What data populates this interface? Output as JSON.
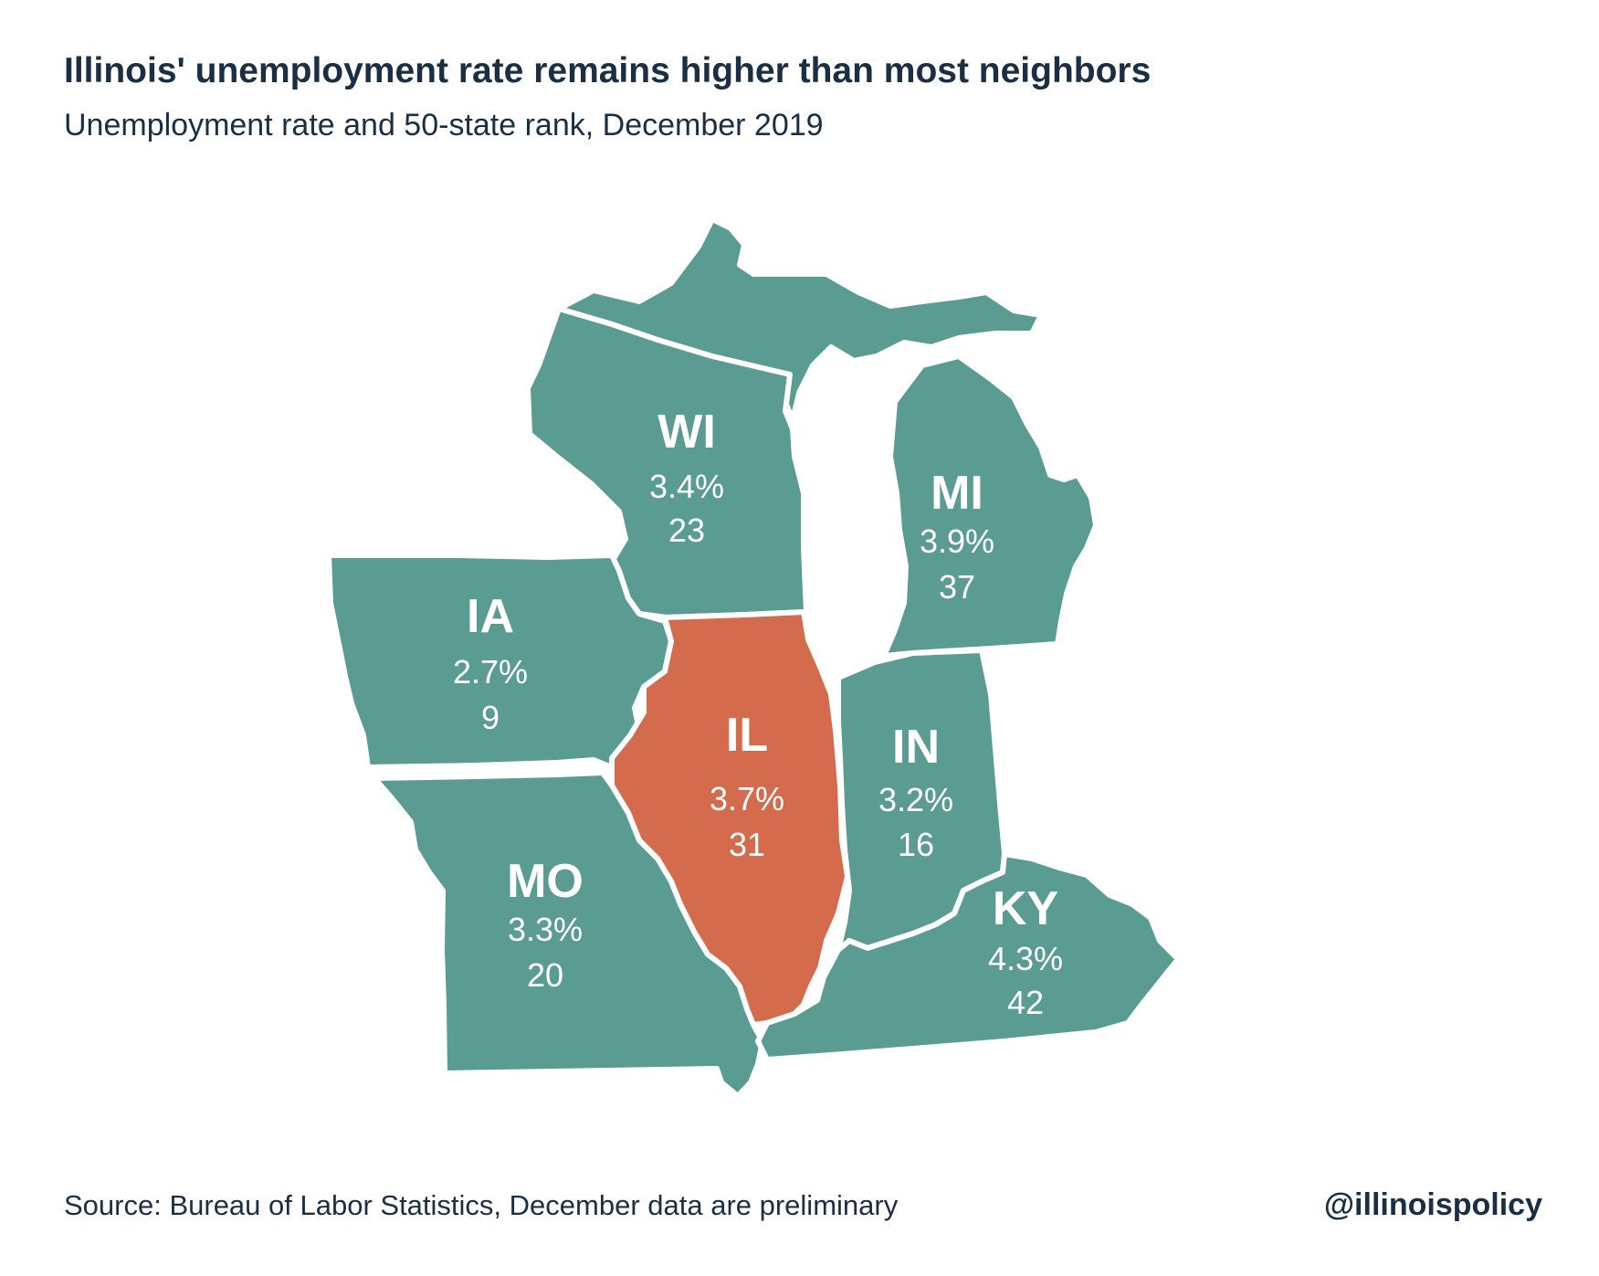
{
  "title": "Illinois' unemployment rate remains higher than most neighbors",
  "subtitle": "Unemployment rate and 50-state rank, December 2019",
  "source": "Source: Bureau of Labor Statistics, December data are preliminary",
  "handle": "@illinoispolicy",
  "colors": {
    "neighbor_fill": "#5a9b92",
    "highlight_fill": "#d46b4c",
    "text_dark": "#1b2f44"
  },
  "states": [
    {
      "abbr": "WI",
      "rate": "3.4%",
      "rank": "23"
    },
    {
      "abbr": "MI",
      "rate": "3.9%",
      "rank": "37"
    },
    {
      "abbr": "IA",
      "rate": "2.7%",
      "rank": "9"
    },
    {
      "abbr": "IL",
      "rate": "3.7%",
      "rank": "31"
    },
    {
      "abbr": "IN",
      "rate": "3.2%",
      "rank": "16"
    },
    {
      "abbr": "MO",
      "rate": "3.3%",
      "rank": "20"
    },
    {
      "abbr": "KY",
      "rate": "4.3%",
      "rank": "42"
    }
  ]
}
